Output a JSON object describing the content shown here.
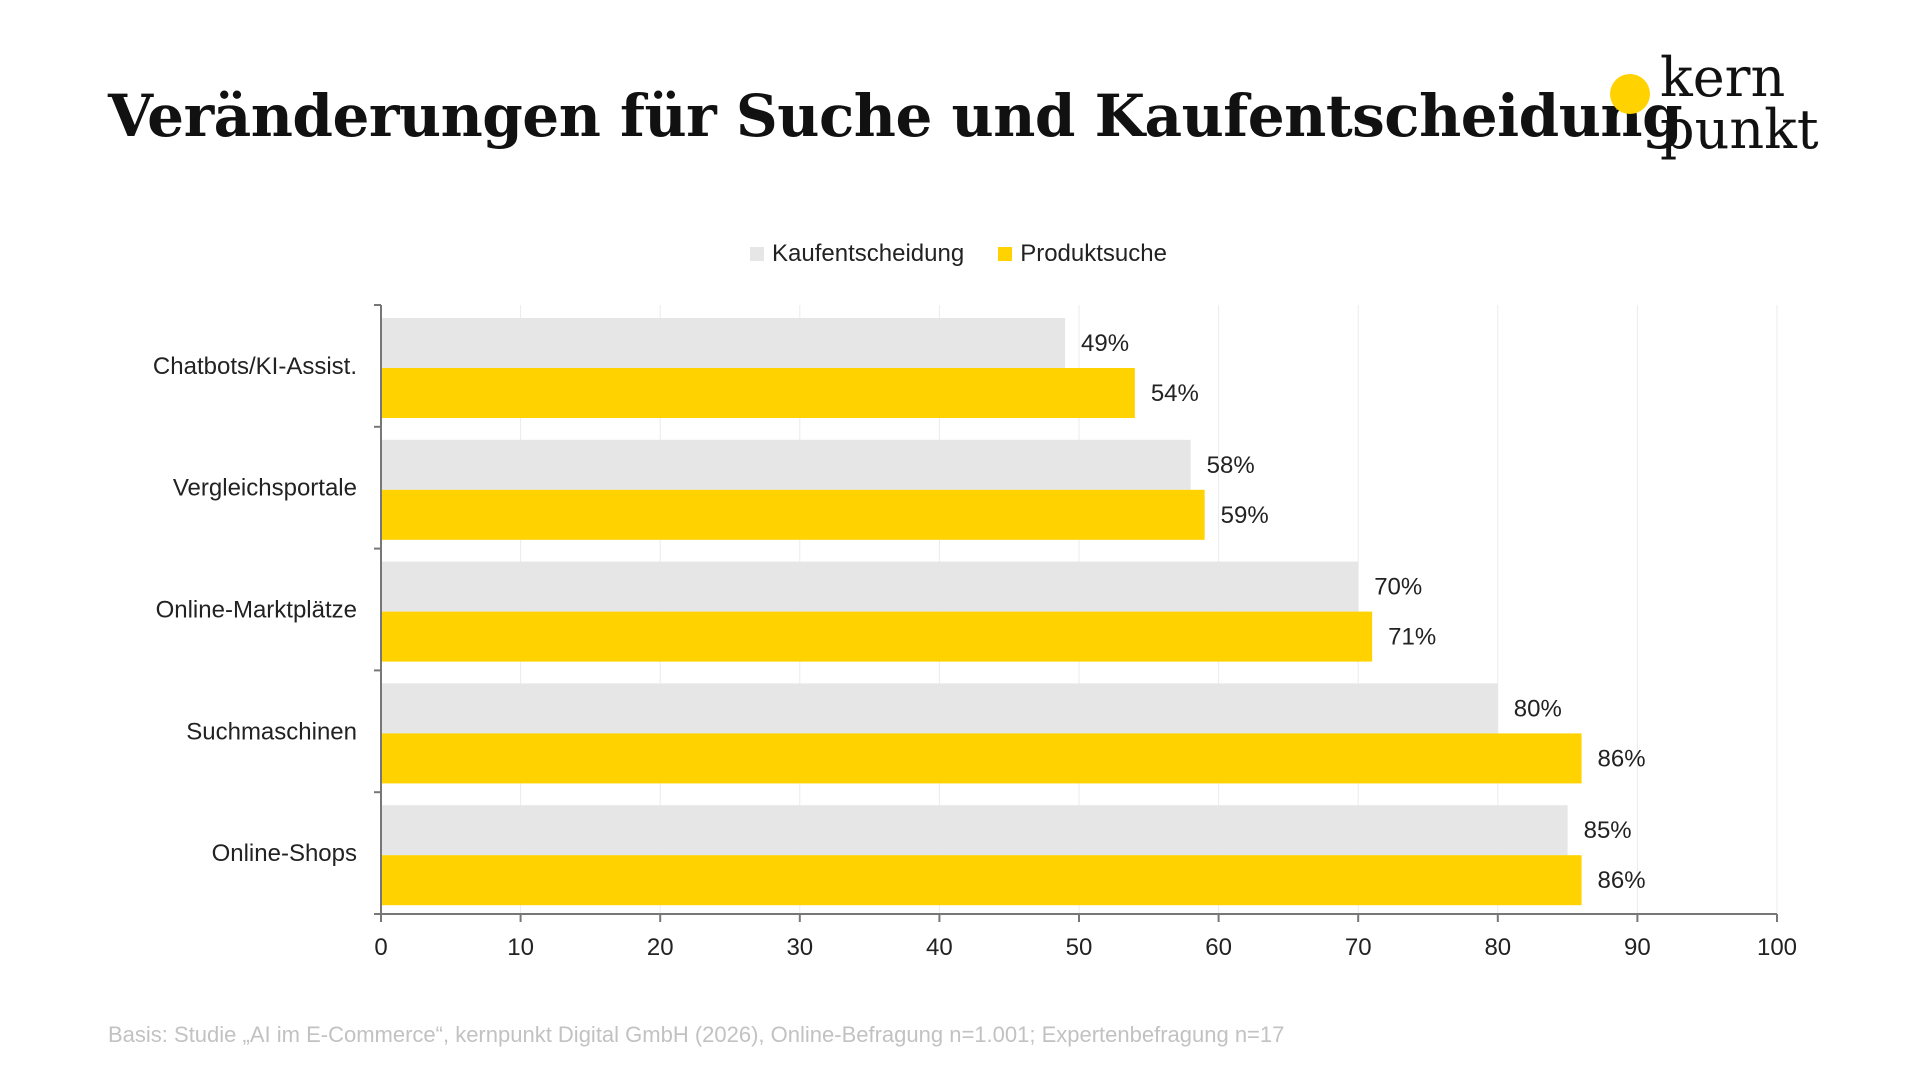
{
  "title": "Veränderungen für Suche und Kaufentscheidung",
  "logo": {
    "line1": "kern",
    "line2": "punkt"
  },
  "colors": {
    "Kaufentscheidung": "#E6E6E6",
    "Produktsuche": "#FFD200",
    "grid": "#ebebeb",
    "axis": "#777777"
  },
  "chart_data": {
    "type": "bar",
    "orientation": "horizontal",
    "categories": [
      "Chatbots/KI-Assist.",
      "Vergleichsportale",
      "Online-Marktplätze",
      "Suchmaschinen",
      "Online-Shops"
    ],
    "series": [
      {
        "name": "Kaufentscheidung",
        "values": [
          49,
          58,
          70,
          80,
          85
        ],
        "labels": [
          "49%",
          "58%",
          "70%",
          "80%",
          "85%"
        ]
      },
      {
        "name": "Produktsuche",
        "values": [
          54,
          59,
          71,
          86,
          86
        ],
        "labels": [
          "54%",
          "59%",
          "71%",
          "86%",
          "86%"
        ]
      }
    ],
    "xlim": [
      0,
      100
    ],
    "xticks": [
      "0",
      "10",
      "20",
      "30",
      "40",
      "50",
      "60",
      "70",
      "80",
      "90",
      "100"
    ],
    "grid": true,
    "legend_position": "top-center"
  },
  "footer": "Basis: Studie „AI im E-Commerce“, kernpunkt Digital GmbH (2026), Online-Befragung n=1.001; Expertenbefragung n=17"
}
